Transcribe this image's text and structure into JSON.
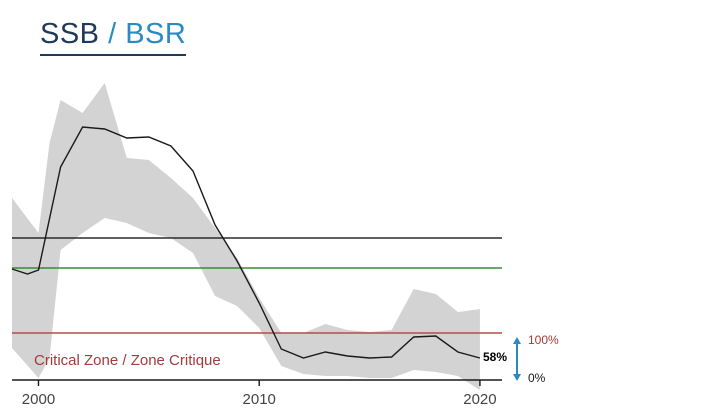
{
  "header": {
    "title_part1": "SSB",
    "title_separator": " / ",
    "title_part2": "BSR",
    "title_color_1": "#1f3a5a",
    "title_color_2": "#2a8bc4"
  },
  "chart_data": {
    "type": "line",
    "title": "SSB / BSR",
    "xlabel": "",
    "ylabel": "",
    "xlim": [
      1998.8,
      2021.0
    ],
    "ylim": [
      0,
      340
    ],
    "x_ticks": [
      2000,
      2010,
      2020
    ],
    "grid": false,
    "series": [
      {
        "color": "#1a1a1a",
        "x": [
          1998.8,
          1999.5,
          2000,
          2001,
          2002,
          2003,
          2004,
          2005,
          2006,
          2007,
          2008,
          2009,
          2010,
          2011,
          2012,
          2013,
          2014,
          2015,
          2016,
          2017,
          2018,
          2019,
          2020
        ],
        "y": [
          109,
          104,
          108,
          211,
          251,
          249,
          240,
          241,
          232,
          207,
          153,
          117,
          75,
          29,
          20,
          26,
          22,
          20,
          21,
          41,
          42,
          26,
          20
        ]
      }
    ],
    "confidence_band": {
      "color": "#d3d3d3",
      "x": [
        1998.8,
        2000,
        2000.5,
        2001,
        2002,
        2003,
        2004,
        2005,
        2006,
        2007,
        2008,
        2009,
        2010,
        2011,
        2012,
        2013,
        2014,
        2015,
        2016,
        2017,
        2018,
        2019,
        2020
      ],
      "upper": [
        180,
        145,
        235,
        278,
        265,
        295,
        220,
        218,
        200,
        180,
        150,
        120,
        80,
        45,
        45,
        54,
        48,
        46,
        48,
        89,
        84,
        66,
        69
      ],
      "lower": [
        30,
        0,
        20,
        128,
        145,
        160,
        155,
        145,
        140,
        125,
        82,
        72,
        50,
        12,
        4,
        2,
        2,
        0,
        0,
        8,
        6,
        2,
        -12
      ]
    },
    "reference_lines": [
      {
        "y": 140,
        "color": "#2b2b2b"
      },
      {
        "y": 110,
        "color": "#3a8a3a"
      },
      {
        "y": 45,
        "color": "#b84a4a"
      }
    ],
    "annotations": {
      "zone_label": "Critical Zone / Zone Critique",
      "zone_color": "#a53a3a",
      "last_value_label": "58%",
      "upper_pct_label": "100%",
      "upper_pct_color": "#a53a3a",
      "lower_pct_label": "0%",
      "lower_pct_color": "#1a1a1a",
      "arrow_color": "#2a8bc4"
    }
  }
}
